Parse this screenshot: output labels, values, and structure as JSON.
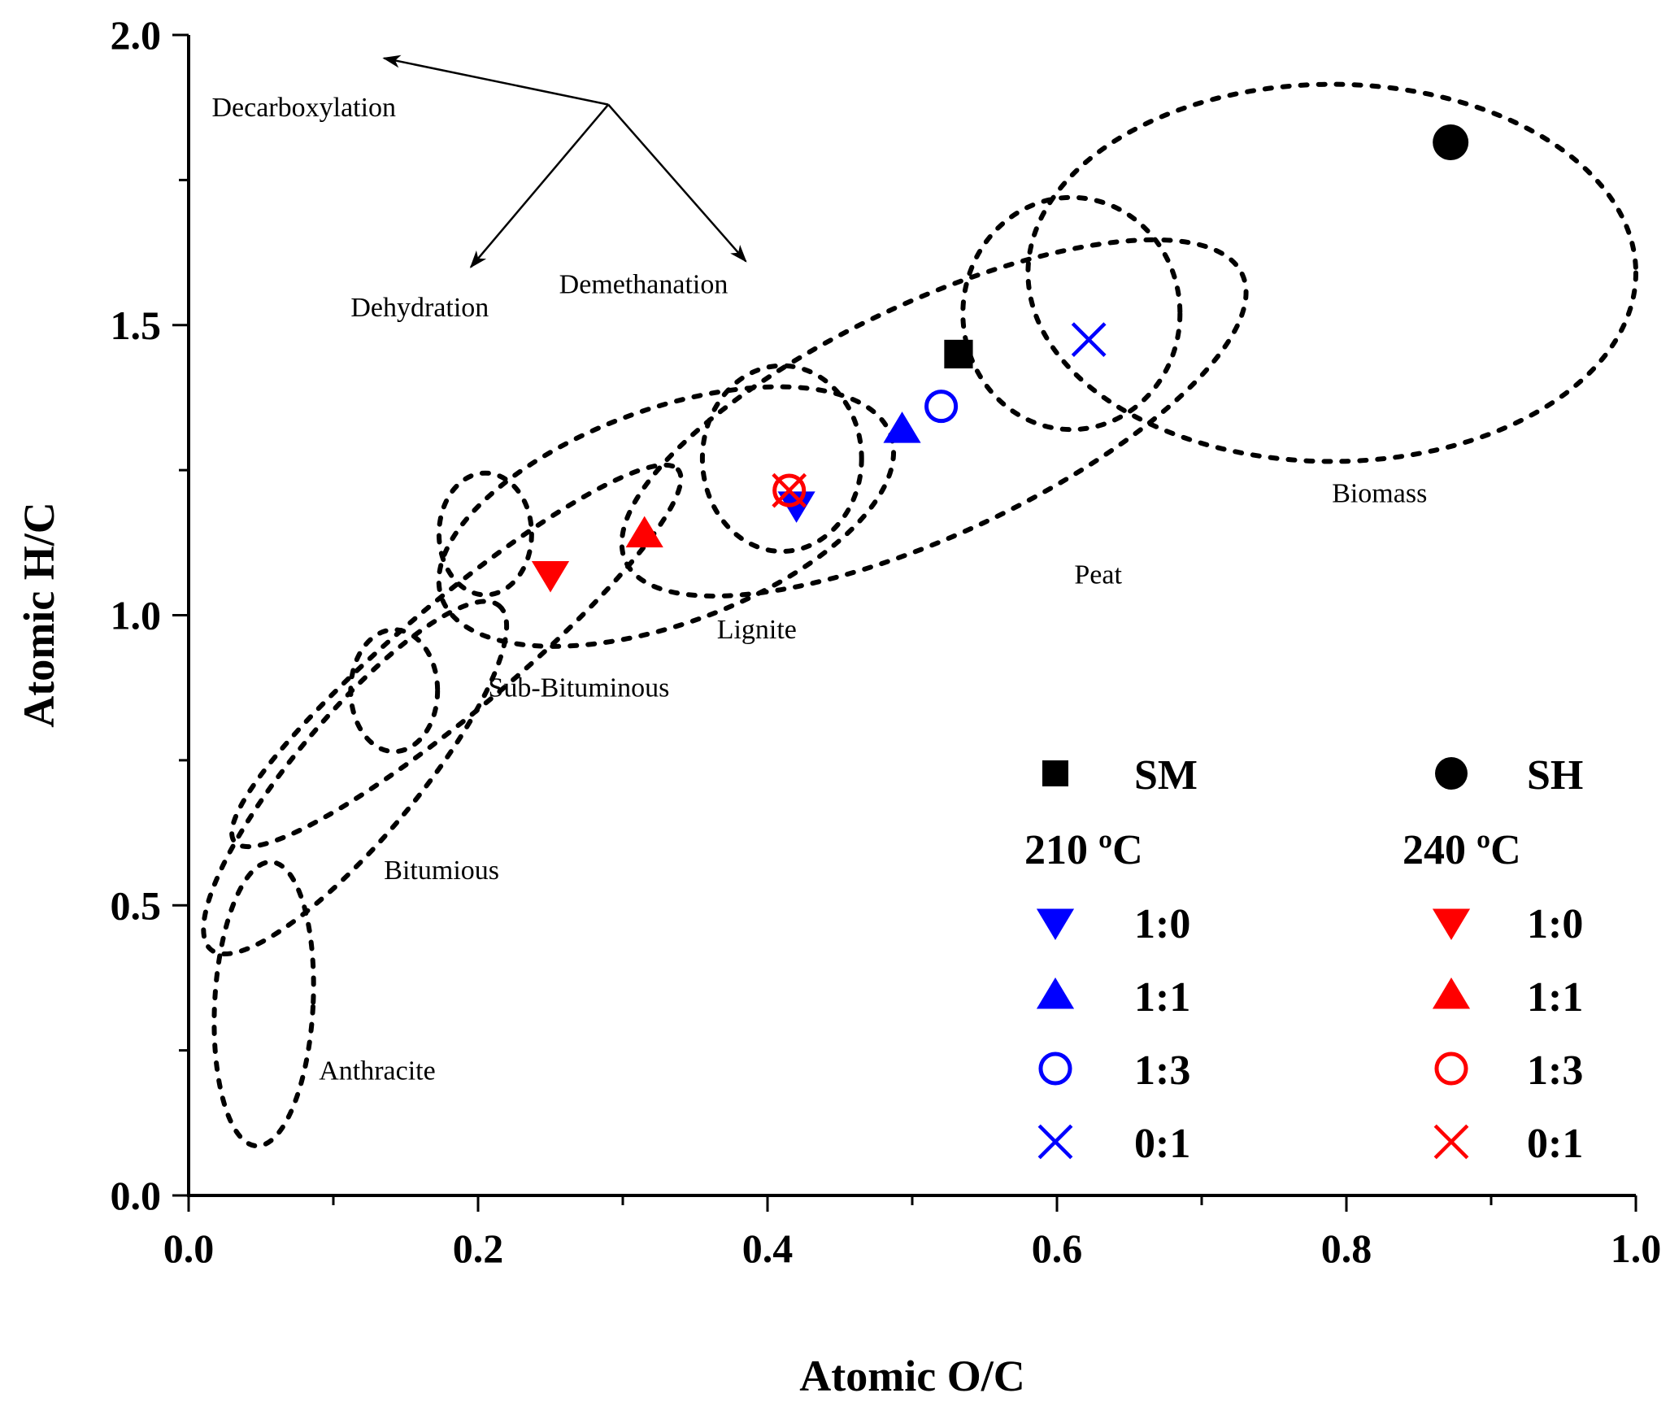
{
  "chart_data": {
    "type": "scatter",
    "xlabel": "Atomic O/C",
    "ylabel": "Atomic H/C",
    "xlim": [
      0.0,
      1.0
    ],
    "ylim": [
      0.0,
      2.0
    ],
    "xticks": [
      "0.0",
      "0.2",
      "0.4",
      "0.6",
      "0.8",
      "1.0"
    ],
    "yticks": [
      "0.0",
      "0.5",
      "1.0",
      "1.5",
      "2.0"
    ],
    "grid": false,
    "series": [
      {
        "name": "SM",
        "group": "",
        "marker": "square",
        "color": "#000000",
        "points": [
          {
            "x": 0.532,
            "y": 1.45
          }
        ]
      },
      {
        "name": "SH",
        "group": "",
        "marker": "circle-filled",
        "color": "#000000",
        "points": [
          {
            "x": 0.872,
            "y": 1.815
          }
        ]
      },
      {
        "name": "1:0",
        "group": "210 ºC",
        "marker": "triangle-down",
        "color": "#0000ff",
        "points": [
          {
            "x": 0.42,
            "y": 1.19
          }
        ]
      },
      {
        "name": "1:1",
        "group": "210 ºC",
        "marker": "triangle-up",
        "color": "#0000ff",
        "points": [
          {
            "x": 0.493,
            "y": 1.32
          }
        ]
      },
      {
        "name": "1:3",
        "group": "210 ºC",
        "marker": "circle-open",
        "color": "#0000ff",
        "points": [
          {
            "x": 0.52,
            "y": 1.36
          }
        ]
      },
      {
        "name": "0:1",
        "group": "210 ºC",
        "marker": "cross",
        "color": "#0000ff",
        "points": [
          {
            "x": 0.622,
            "y": 1.475
          }
        ]
      },
      {
        "name": "1:0",
        "group": "240 ºC",
        "marker": "triangle-down",
        "color": "#ff0000",
        "points": [
          {
            "x": 0.25,
            "y": 1.07
          }
        ]
      },
      {
        "name": "1:1",
        "group": "240 ºC",
        "marker": "triangle-up",
        "color": "#ff0000",
        "points": [
          {
            "x": 0.315,
            "y": 1.14
          }
        ]
      },
      {
        "name": "1:3",
        "group": "240 ºC",
        "marker": "circle-open",
        "color": "#ff0000",
        "points": [
          {
            "x": 0.415,
            "y": 1.215
          }
        ]
      },
      {
        "name": "0:1",
        "group": "240 ºC",
        "marker": "cross",
        "color": "#ff0000",
        "points": [
          {
            "x": 0.415,
            "y": 1.215
          }
        ]
      }
    ],
    "regions": [
      {
        "label": "Anthracite",
        "cx": 0.052,
        "cy": 0.33,
        "rx": 0.034,
        "ry": 0.245,
        "angle": -3,
        "label_x": 0.09,
        "label_y": 0.2
      },
      {
        "label": "Bitumious",
        "cx": 0.115,
        "cy": 0.72,
        "rx": 0.155,
        "ry": 0.105,
        "angle": 50,
        "label_x": 0.135,
        "label_y": 0.545
      },
      {
        "label": "Sub-Bituminous",
        "cx": 0.142,
        "cy": 0.87,
        "rx": 0.03,
        "ry": 0.105,
        "angle": 0,
        "label_x": 0.207,
        "label_y": 0.86
      },
      {
        "label": "Sub-Bituminous",
        "cx": 0.185,
        "cy": 0.93,
        "rx": 0.2,
        "ry": 0.095,
        "angle": 40,
        "label_x": 0.207,
        "label_y": 0.86
      },
      {
        "label": "Sub-Bituminous",
        "cx": 0.205,
        "cy": 1.14,
        "rx": 0.032,
        "ry": 0.105,
        "angle": 0,
        "label_x": 0.207,
        "label_y": 0.86
      },
      {
        "label": "Lignite",
        "cx": 0.33,
        "cy": 1.17,
        "rx": 0.165,
        "ry": 0.185,
        "angle": 20,
        "label_x": 0.365,
        "label_y": 0.96
      },
      {
        "label": "Lignite",
        "cx": 0.41,
        "cy": 1.27,
        "rx": 0.055,
        "ry": 0.16,
        "angle": 0,
        "label_x": 0.365,
        "label_y": 0.96
      },
      {
        "label": "Peat",
        "cx": 0.515,
        "cy": 1.34,
        "rx": 0.235,
        "ry": 0.2,
        "angle": 25,
        "label_x": 0.612,
        "label_y": 1.055
      },
      {
        "label": "Peat",
        "cx": 0.61,
        "cy": 1.52,
        "rx": 0.075,
        "ry": 0.2,
        "angle": 0,
        "label_x": 0.612,
        "label_y": 1.055
      },
      {
        "label": "Biomass",
        "cx": 0.79,
        "cy": 1.59,
        "rx": 0.21,
        "ry": 0.325,
        "angle": 0,
        "label_x": 0.79,
        "label_y": 1.195
      }
    ],
    "annotations": [
      {
        "text": "Decarboxylation",
        "x": 0.016,
        "y": 1.86
      },
      {
        "text": "Dehydration",
        "x": 0.112,
        "y": 1.515
      },
      {
        "text": "Demethanation",
        "x": 0.256,
        "y": 1.555
      }
    ],
    "arrows": {
      "origin": {
        "x": 0.29,
        "y": 1.88
      },
      "targets": [
        {
          "x": 0.135,
          "y": 1.96
        },
        {
          "x": 0.195,
          "y": 1.6
        },
        {
          "x": 0.385,
          "y": 1.61
        }
      ]
    },
    "legend": {
      "position": "bottom-right",
      "col1_header": "SM",
      "col2_header": "SH",
      "group1": "210 ºC",
      "group2": "240 ºC",
      "labels": [
        "1:0",
        "1:1",
        "1:3",
        "0:1"
      ]
    }
  }
}
